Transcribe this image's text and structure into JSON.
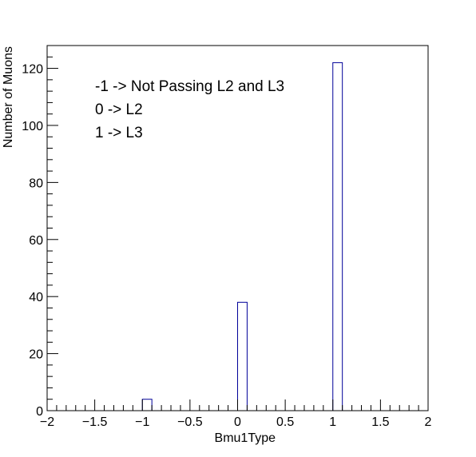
{
  "chart_data": {
    "type": "bar",
    "xlabel": "Bmu1Type",
    "ylabel": "Number of Muons",
    "xlim": [
      -2,
      2
    ],
    "ylim": [
      0,
      128
    ],
    "x_ticks": [
      -2,
      -1.5,
      -1,
      -0.5,
      0,
      0.5,
      1,
      1.5,
      2
    ],
    "x_tick_labels": [
      "−2",
      "−1.5",
      "−1",
      "−0.5",
      "0",
      "0.5",
      "1",
      "1.5",
      "2"
    ],
    "y_ticks": [
      0,
      20,
      40,
      60,
      80,
      100,
      120
    ],
    "y_tick_labels": [
      "0",
      "20",
      "40",
      "60",
      "80",
      "100",
      "120"
    ],
    "bin_width": 0.1,
    "bars": [
      {
        "x_low": -1.0,
        "x_high": -0.9,
        "value": 4
      },
      {
        "x_low": 0.0,
        "x_high": 0.1,
        "value": 38
      },
      {
        "x_low": 1.0,
        "x_high": 1.1,
        "value": 122
      }
    ],
    "annotations": [
      "-1 -> Not Passing L2 and L3",
      "0 -> L2",
      "1 -> L3"
    ],
    "grid": false,
    "bar_color": "#000099"
  }
}
